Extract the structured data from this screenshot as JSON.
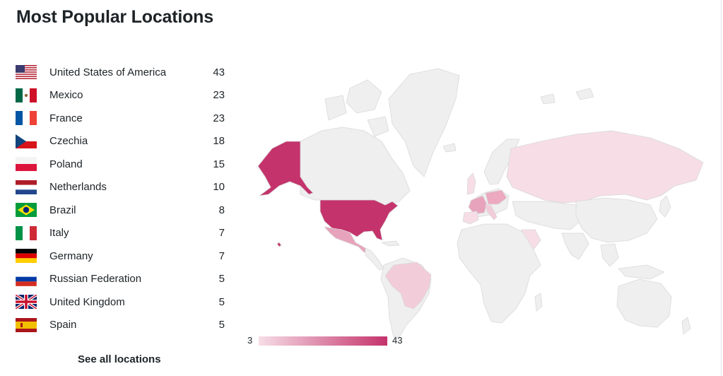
{
  "title": "Most Popular Locations",
  "locations": [
    {
      "name": "United States of America",
      "count": "43",
      "flag": "us-flag"
    },
    {
      "name": "Mexico",
      "count": "23",
      "flag": "mx-flag"
    },
    {
      "name": "France",
      "count": "23",
      "flag": "fr-flag"
    },
    {
      "name": "Czechia",
      "count": "18",
      "flag": "cz-flag"
    },
    {
      "name": "Poland",
      "count": "15",
      "flag": "pl-flag"
    },
    {
      "name": "Netherlands",
      "count": "10",
      "flag": "nl-flag"
    },
    {
      "name": "Brazil",
      "count": "8",
      "flag": "br-flag"
    },
    {
      "name": "Italy",
      "count": "7",
      "flag": "it-flag"
    },
    {
      "name": "Germany",
      "count": "7",
      "flag": "de-flag"
    },
    {
      "name": "Russian Federation",
      "count": "5",
      "flag": "ru-flag"
    },
    {
      "name": "United Kingdom",
      "count": "5",
      "flag": "gb-flag"
    },
    {
      "name": "Spain",
      "count": "5",
      "flag": "es-flag"
    }
  ],
  "see_all_label": "See all locations",
  "legend": {
    "min": "3",
    "max": "43"
  },
  "colors": {
    "scale_low": "#f6dde6",
    "scale_high": "#c4336b",
    "land": "#efefef",
    "border": "#d9d9d9"
  }
}
